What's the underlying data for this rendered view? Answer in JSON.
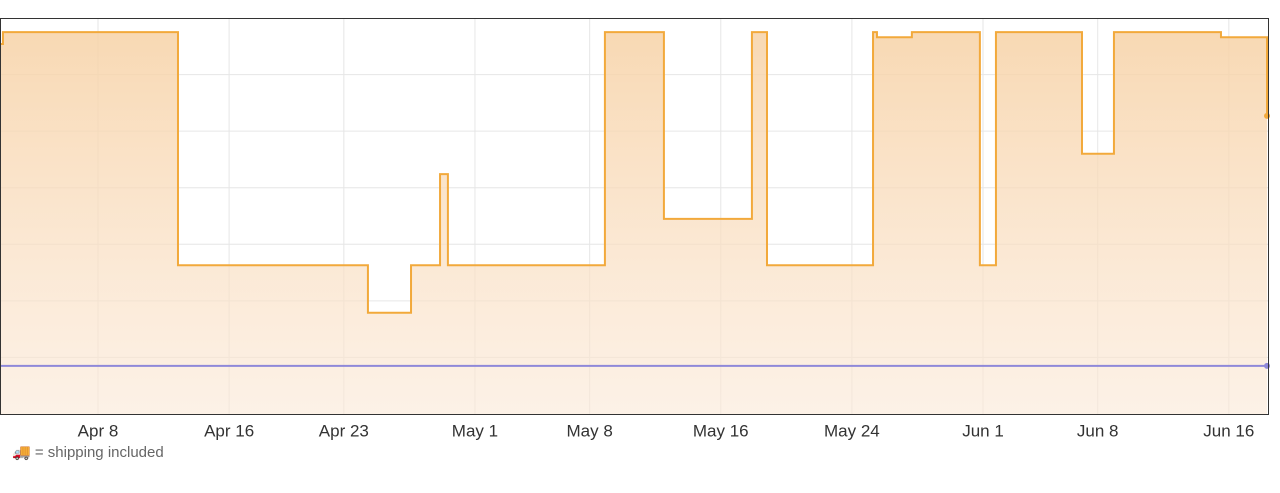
{
  "chart_data": {
    "type": "step-line",
    "x": [
      92.02,
      92.2,
      102.88,
      114.47,
      117.1,
      118.87,
      119.35,
      128.93,
      132.53,
      137.9,
      138.82,
      145.29,
      145.53,
      147.66,
      151.81,
      152.79,
      158.04,
      159.99,
      166.52,
      169.33
    ],
    "series": [
      {
        "color": "#f2a93b",
        "values": [
          6.54,
          6.75,
          2.63,
          1.79,
          2.63,
          4.24,
          2.63,
          6.75,
          3.45,
          6.75,
          2.63,
          6.75,
          6.66,
          6.75,
          2.63,
          6.75,
          4.6,
          6.75,
          6.66,
          5.27
        ],
        "fill": true
      },
      {
        "color": "#8f88d9",
        "values": [
          0.85,
          0.85,
          0.85,
          0.85,
          0.85,
          0.85,
          0.85,
          0.85,
          0.85,
          0.85,
          0.85,
          0.85,
          0.85,
          0.85,
          0.85,
          0.85,
          0.85,
          0.85,
          0.85,
          0.85
        ],
        "fill": false
      }
    ],
    "xlim": [
      92.02,
      169.39
    ],
    "xticks": [
      {
        "value": 98,
        "label": "Apr 8"
      },
      {
        "value": 106,
        "label": "Apr 16"
      },
      {
        "value": 113,
        "label": "Apr 23"
      },
      {
        "value": 121,
        "label": "May 1"
      },
      {
        "value": 128,
        "label": "May 8"
      },
      {
        "value": 136,
        "label": "May 16"
      },
      {
        "value": 144,
        "label": "May 24"
      },
      {
        "value": 152,
        "label": "Jun 1"
      },
      {
        "value": 159,
        "label": "Jun 8"
      },
      {
        "value": 167,
        "label": "Jun 16"
      }
    ],
    "ylim": [
      0,
      7
    ],
    "yticks": [
      1,
      2,
      3,
      4,
      5,
      6
    ],
    "grid": true,
    "note": "🚚 = shipping included"
  }
}
